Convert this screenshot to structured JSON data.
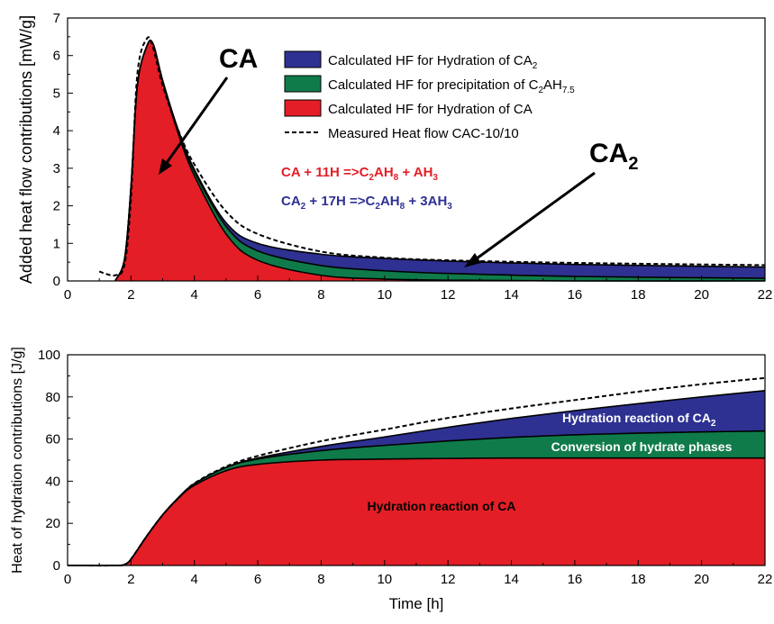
{
  "chart_data": [
    {
      "type": "area",
      "ylabel": "Added heat flow contributions [mW/g]",
      "xlim": [
        0,
        22
      ],
      "ylim": [
        0,
        7
      ],
      "x_ticks": [
        "0",
        "2",
        "4",
        "6",
        "8",
        "10",
        "12",
        "14",
        "16",
        "18",
        "20",
        "22"
      ],
      "y_ticks": [
        "0",
        "1",
        "2",
        "3",
        "4",
        "5",
        "6",
        "7"
      ],
      "x": [
        1.5,
        1.8,
        2.0,
        2.2,
        2.5,
        2.7,
        3.0,
        3.5,
        4.0,
        5.0,
        6.0,
        8.0,
        10.0,
        12.0,
        16.0,
        22.0
      ],
      "series": [
        {
          "name": "Calculated HF for Hydration of CA",
          "color": "#e41e26",
          "values": [
            0,
            0.6,
            2.5,
            5.2,
            6.25,
            6.3,
            5.3,
            3.9,
            2.8,
            1.25,
            0.55,
            0.15,
            0.05,
            0.02,
            0.0,
            0.0
          ]
        },
        {
          "name": "Calculated HF for precipitation of C2AH7.5",
          "color": "#0f7b4a",
          "values": [
            0,
            0,
            0,
            0,
            0,
            0.01,
            0.03,
            0.07,
            0.12,
            0.2,
            0.25,
            0.26,
            0.22,
            0.18,
            0.12,
            0.07
          ]
        },
        {
          "name": "Calculated HF for Hydration of CA2",
          "color": "#2e3192",
          "values": [
            0,
            0,
            0,
            0,
            0,
            0,
            0.01,
            0.03,
            0.05,
            0.1,
            0.2,
            0.3,
            0.33,
            0.33,
            0.32,
            0.3
          ]
        }
      ],
      "measured": {
        "name": "Measured Heat flow CAC-10/10",
        "x": [
          1.0,
          1.5,
          1.8,
          2.0,
          2.2,
          2.5,
          2.7,
          3.0,
          3.5,
          4.0,
          5.0,
          6.0,
          8.0,
          10.0,
          12.0,
          16.0,
          22.0
        ],
        "values": [
          0.25,
          0.15,
          0.45,
          2.2,
          5.5,
          6.45,
          6.2,
          5.2,
          4.0,
          3.1,
          1.85,
          1.25,
          0.78,
          0.62,
          0.55,
          0.48,
          0.42
        ]
      },
      "legend": {
        "items": [
          {
            "text": "Calculated HF for Hydration of CA",
            "sub": "2",
            "after": "",
            "color": "#2e3192",
            "kind": "box"
          },
          {
            "text": "Calculated HF for precipitation of C",
            "sub": "2",
            "after": "AH",
            "sub2": "7.5",
            "color": "#0f7b4a",
            "kind": "box"
          },
          {
            "text": "Calculated HF for Hydration of CA",
            "sub": "",
            "after": "",
            "color": "#e41e26",
            "kind": "box"
          },
          {
            "text": "Measured Heat flow CAC-10/10",
            "sub": "",
            "after": "",
            "color": "#000000",
            "kind": "dash"
          }
        ],
        "position": "top-right"
      },
      "annotations": {
        "ca_label": "CA",
        "ca2_label": "CA",
        "ca2_sub": "2",
        "eq1": [
          "CA + 11H =>C",
          "2",
          "AH",
          "8",
          " + AH",
          "3"
        ],
        "eq2": [
          "CA",
          "2",
          " + 17H =>C",
          "2",
          "AH",
          "8",
          " + 3AH",
          "3"
        ],
        "eq1_color": "#e41e26",
        "eq2_color": "#2e3192"
      }
    },
    {
      "type": "area",
      "xlabel": "Time [h]",
      "ylabel": "Heat of hydration contributions [J/g]",
      "xlim": [
        0,
        22
      ],
      "ylim": [
        0,
        100
      ],
      "x_ticks": [
        "0",
        "2",
        "4",
        "6",
        "8",
        "10",
        "12",
        "14",
        "16",
        "18",
        "20",
        "22"
      ],
      "y_ticks": [
        "0",
        "20",
        "40",
        "60",
        "80",
        "100"
      ],
      "x": [
        0,
        1.5,
        1.8,
        2.0,
        2.5,
        3.0,
        3.5,
        4.0,
        5.0,
        6.0,
        8.0,
        10.0,
        12.0,
        14.0,
        16.0,
        18.0,
        20.0,
        22.0
      ],
      "series": [
        {
          "name": "Hydration reaction of CA",
          "color": "#e41e26",
          "values": [
            0,
            0,
            0.5,
            3,
            14,
            24,
            32,
            38,
            45,
            48,
            50,
            50.5,
            50.8,
            51,
            51,
            51,
            51,
            51
          ]
        },
        {
          "name": "Conversion of hydrate phases",
          "color": "#0f7b4a",
          "values": [
            0,
            0,
            0,
            0,
            0,
            0.1,
            0.3,
            0.8,
            1.5,
            2.5,
            4.5,
            6.5,
            8.3,
            9.8,
            11,
            11.8,
            12.4,
            12.8
          ]
        },
        {
          "name": "Hydration reaction of CA2",
          "color": "#2e3192",
          "values": [
            0,
            0,
            0,
            0,
            0,
            0,
            0,
            0,
            0.1,
            0.5,
            2,
            4,
            6.5,
            9,
            11.5,
            14,
            16.6,
            19.2
          ]
        }
      ],
      "measured": {
        "x": [
          0,
          1.5,
          1.8,
          2.0,
          2.5,
          3.0,
          3.5,
          4.0,
          5.0,
          6.0,
          8.0,
          10.0,
          12.0,
          14.0,
          16.0,
          18.0,
          20.0,
          22.0
        ],
        "values": [
          0,
          0,
          0.5,
          3,
          14,
          24,
          32,
          39,
          47,
          52,
          59,
          64.5,
          70,
          74.5,
          78.5,
          82.5,
          86,
          89
        ]
      },
      "labels": {
        "ca": "Hydration reaction of CA",
        "conv": "Conversion of hydrate phases",
        "ca2": "Hydration reaction of CA",
        "ca2_sub": "2"
      }
    }
  ]
}
